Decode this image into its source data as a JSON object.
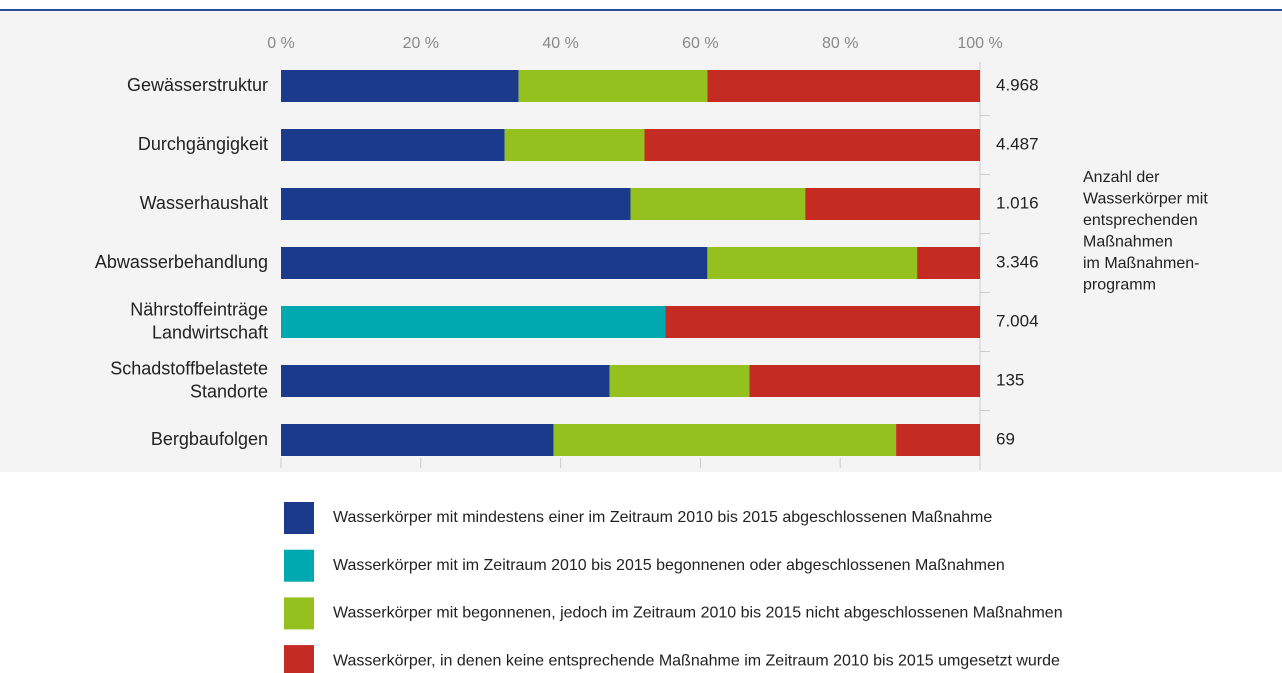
{
  "chart_data": {
    "type": "stacked-bar-horizontal",
    "categories": [
      [
        "Gewässerstruktur"
      ],
      [
        "Durchgängigkeit"
      ],
      [
        "Wasserhaushalt"
      ],
      [
        "Abwasserbehandlung"
      ],
      [
        "Nährstoffeinträge",
        "Landwirtschaft"
      ],
      [
        "Schadstoffbelastete",
        "Standorte"
      ],
      [
        "Bergbaufolgen"
      ]
    ],
    "series": [
      {
        "name": "Wasserkörper mit mindestens einer im Zeitraum 2010 bis 2015 abgeschlossenen Maßnahme",
        "color": "#1b3a8c",
        "values": [
          34,
          32,
          50,
          61,
          null,
          47,
          39
        ]
      },
      {
        "name": "Wasserkörper mit im Zeitraum 2010 bis 2015 begonnenen oder abgeschlossenen Maßnahmen",
        "color": "#00a9b0",
        "values": [
          null,
          null,
          null,
          null,
          55,
          null,
          null
        ]
      },
      {
        "name": "Wasserkörper mit begonnenen, jedoch im Zeitraum 2010 bis 2015 nicht abgeschlossenen Maßnahmen",
        "color": "#95c11f",
        "values": [
          27,
          20,
          25,
          30,
          null,
          20,
          49
        ]
      },
      {
        "name": "Wasserkörper, in denen keine entsprechende Maßnahme im Zeitraum 2010 bis 2015 umgesetzt wurde",
        "color": "#c42b22",
        "values": [
          39,
          48,
          25,
          9,
          45,
          33,
          12
        ]
      }
    ],
    "count_labels": [
      "4.968",
      "4.487",
      "1.016",
      "3.346",
      "7.004",
      "135",
      "69"
    ],
    "count_note": [
      "Anzahl der",
      "Wasserkörper mit",
      "entsprechenden",
      "Maßnahmen",
      "im Maßnahmen-",
      "programm"
    ],
    "xlim": [
      0,
      100
    ],
    "xticks": [
      {
        "value": 0,
        "label": "0 %"
      },
      {
        "value": 20,
        "label": "20 %"
      },
      {
        "value": 40,
        "label": "40 %"
      },
      {
        "value": 60,
        "label": "60 %"
      },
      {
        "value": 80,
        "label": "80 %"
      },
      {
        "value": 100,
        "label": "100 %"
      }
    ]
  }
}
